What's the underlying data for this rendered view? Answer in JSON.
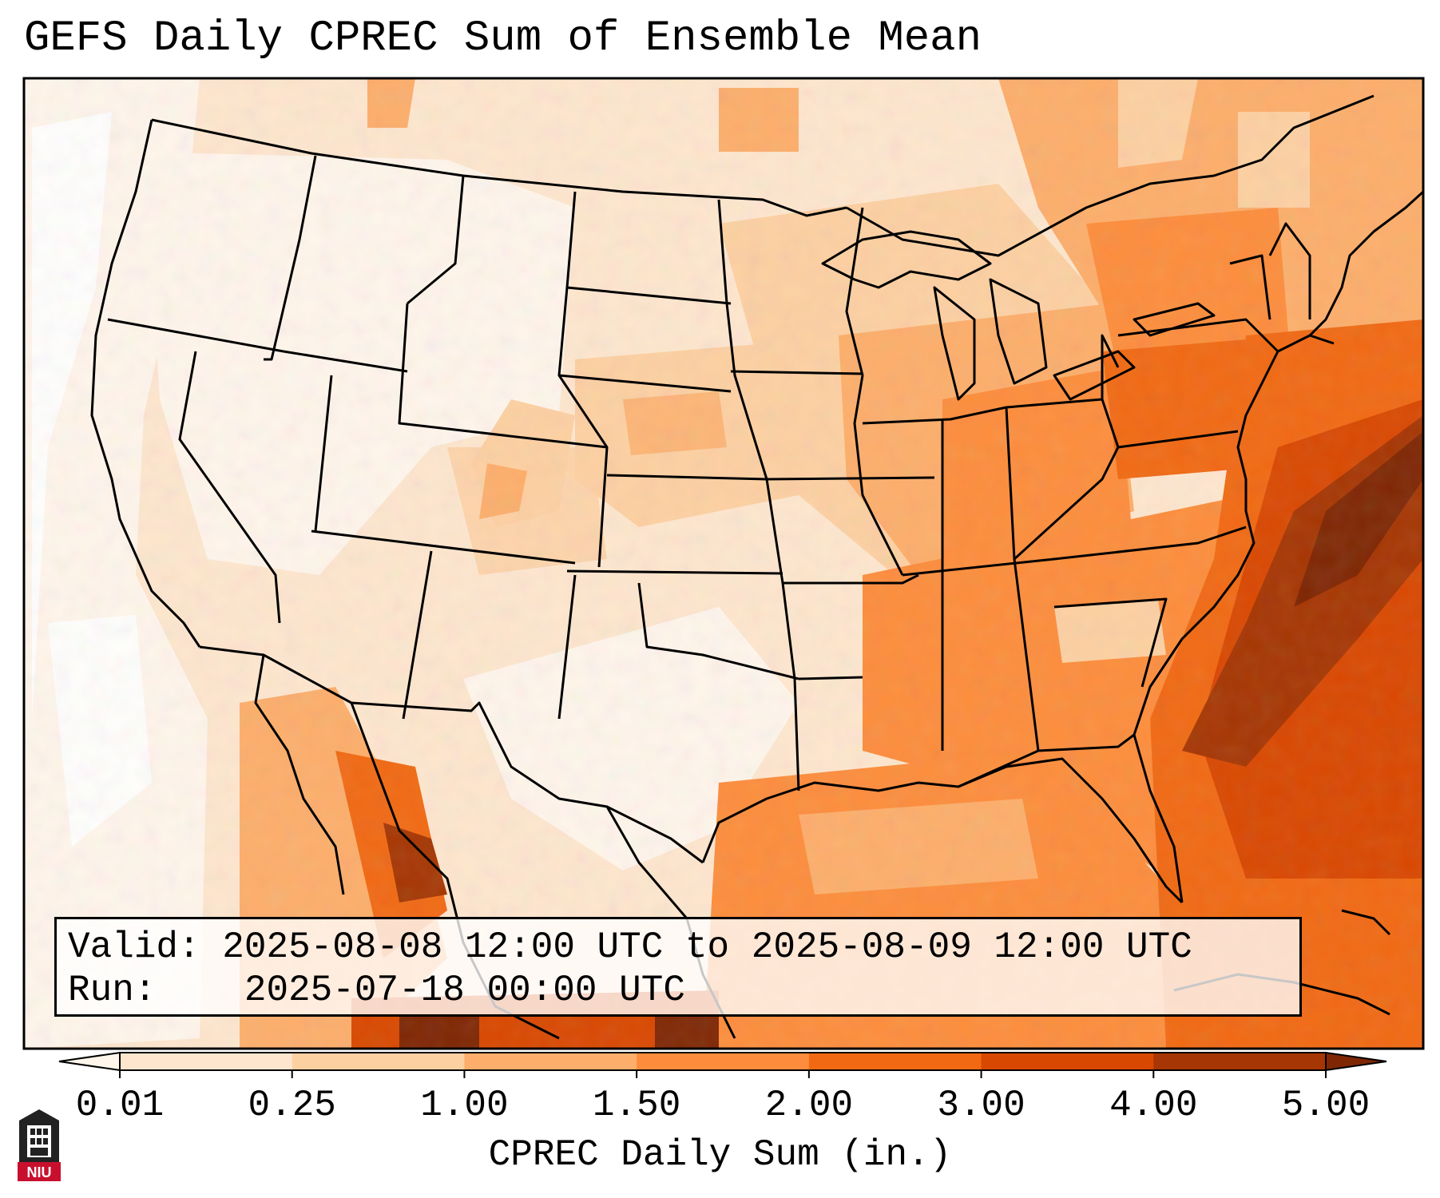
{
  "title": "GEFS Daily CPREC Sum of Ensemble Mean",
  "info": {
    "valid_label": "Valid:",
    "valid_value": "2025-08-08 12:00 UTC to 2025-08-09 12:00 UTC",
    "run_label": "Run:",
    "run_value": "2025-07-18 00:00 UTC"
  },
  "colorbar": {
    "label": "CPREC Daily Sum (in.)",
    "ticks": [
      "0.01",
      "0.25",
      "1.00",
      "1.50",
      "2.00",
      "3.00",
      "4.00",
      "5.00"
    ],
    "colors": [
      "#fff5eb",
      "#fee6ce",
      "#fdd0a2",
      "#fdae6b",
      "#fd8d3c",
      "#f16913",
      "#d94801",
      "#a63603",
      "#7f2704"
    ]
  },
  "logo": {
    "text": "NIU",
    "color": "#c8102e"
  },
  "icons": {
    "logo": "niu-logo-icon"
  }
}
